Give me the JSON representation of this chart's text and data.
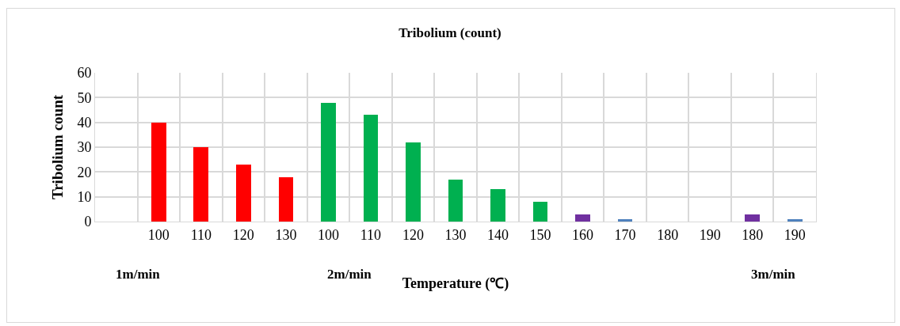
{
  "chart_data": {
    "type": "bar",
    "title": "Tribolium (count)",
    "xlabel": "Temperature (℃)",
    "ylabel": "Tribolium count",
    "categories": [
      null,
      "100",
      "110",
      "120",
      "130",
      "100",
      "110",
      "120",
      "130",
      "140",
      "150",
      "160",
      "170",
      "180",
      "190",
      "180",
      "190"
    ],
    "values": [
      null,
      40,
      30,
      23,
      18,
      48,
      43,
      32,
      17,
      13,
      8,
      3,
      1,
      0,
      0,
      3,
      1
    ],
    "colors": [
      "#ff0000",
      "#ff0000",
      "#ff0000",
      "#ff0000",
      "#ff0000",
      "#00b050",
      "#00b050",
      "#00b050",
      "#00b050",
      "#00b050",
      "#00b050",
      "#7030a0",
      "#4f81bd",
      "#4f81bd",
      "#4f81bd",
      "#7030a0",
      "#4f81bd"
    ],
    "ylim": [
      0,
      60
    ],
    "yticks": [
      0,
      10,
      20,
      30,
      40,
      50,
      60
    ],
    "grid": true,
    "annotations": [
      "1m/min",
      "2m/min",
      "3m/min"
    ]
  }
}
